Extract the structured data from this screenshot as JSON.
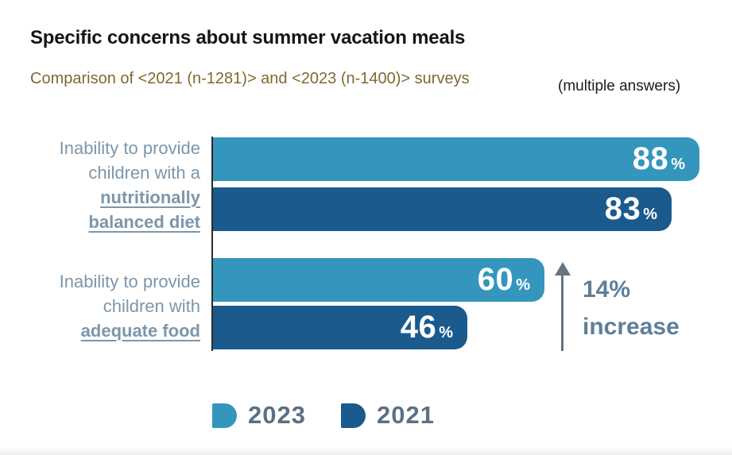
{
  "header": {
    "title": "Specific concerns about summer vacation meals",
    "subtitle": "Comparison of <2021 (n-1281)> and <2023 (n-1400)> surveys",
    "note": "(multiple answers)"
  },
  "chart_data": {
    "type": "bar",
    "orientation": "horizontal",
    "unit": "%",
    "value_range": [
      0,
      100
    ],
    "grid": false,
    "legend_position": "bottom",
    "legend": [
      {
        "label": "2023",
        "color": "#3496BD"
      },
      {
        "label": "2021",
        "color": "#1A5A8C"
      }
    ],
    "rows": [
      {
        "category": "Inability to provide children with a nutritionally balanced diet",
        "label_lines": [
          "Inability to provide",
          "children with a"
        ],
        "emphasis_lines": [
          "nutritionally",
          "balanced diet"
        ],
        "bars": [
          {
            "series": "2023",
            "value": 88
          },
          {
            "series": "2021",
            "value": 83
          }
        ]
      },
      {
        "category": "Inability to provide children with adequate food",
        "label_lines": [
          "Inability to provide",
          "children with"
        ],
        "emphasis_lines": [
          "adequate food"
        ],
        "bars": [
          {
            "series": "2023",
            "value": 60
          },
          {
            "series": "2021",
            "value": 46
          }
        ]
      }
    ],
    "annotation": {
      "line1": "14%",
      "line2": "increase"
    }
  },
  "colors": {
    "series_2023": "#3496BD",
    "series_2021": "#1A5A8C",
    "category_label": "#7D96A9",
    "legend_label": "#5C7083",
    "annotation_text": "#5E7F98",
    "arrow": "#68737D",
    "subtitle_text": "#7D6A2E",
    "title_text": "#151515"
  }
}
